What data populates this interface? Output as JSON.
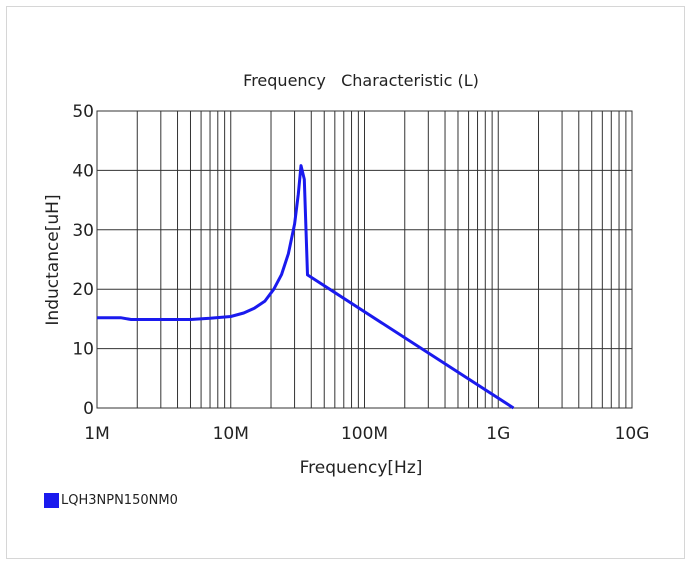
{
  "chart_data": {
    "type": "line",
    "title": "Frequency   Characteristic (L)",
    "xlabel": "Frequency[Hz]",
    "ylabel": "Inductance[uH]",
    "x_scale": "log",
    "xlim": [
      1000000,
      10000000000
    ],
    "ylim": [
      0,
      50
    ],
    "x_ticks": [
      {
        "value": 1000000,
        "label": "1M"
      },
      {
        "value": 10000000,
        "label": "10M"
      },
      {
        "value": 100000000,
        "label": "100M"
      },
      {
        "value": 1000000000,
        "label": "1G"
      },
      {
        "value": 10000000000,
        "label": "10G"
      }
    ],
    "y_ticks": [
      {
        "value": 0,
        "label": "0"
      },
      {
        "value": 10,
        "label": "10"
      },
      {
        "value": 20,
        "label": "20"
      },
      {
        "value": 30,
        "label": "30"
      },
      {
        "value": 40,
        "label": "40"
      },
      {
        "value": 50,
        "label": "50"
      }
    ],
    "grid": true,
    "legend_position": "bottom-left",
    "series": [
      {
        "name": "LQH3NPN150NM0",
        "color": "#1a1aee",
        "points": [
          [
            1000000,
            15.2
          ],
          [
            1500000,
            15.2
          ],
          [
            1800000,
            14.9
          ],
          [
            3000000,
            14.9
          ],
          [
            5000000,
            14.9
          ],
          [
            7000000,
            15.1
          ],
          [
            10000000,
            15.4
          ],
          [
            12500000,
            16.0
          ],
          [
            15000000,
            16.8
          ],
          [
            18000000,
            18.0
          ],
          [
            21000000,
            20.0
          ],
          [
            24000000,
            22.5
          ],
          [
            27000000,
            26.0
          ],
          [
            30000000,
            31.0
          ],
          [
            32000000,
            36.0
          ],
          [
            33500000,
            40.8
          ],
          [
            35500000,
            38.5
          ],
          [
            36500000,
            30.0
          ],
          [
            37500000,
            22.4
          ],
          [
            1300000000,
            0
          ]
        ]
      }
    ]
  }
}
